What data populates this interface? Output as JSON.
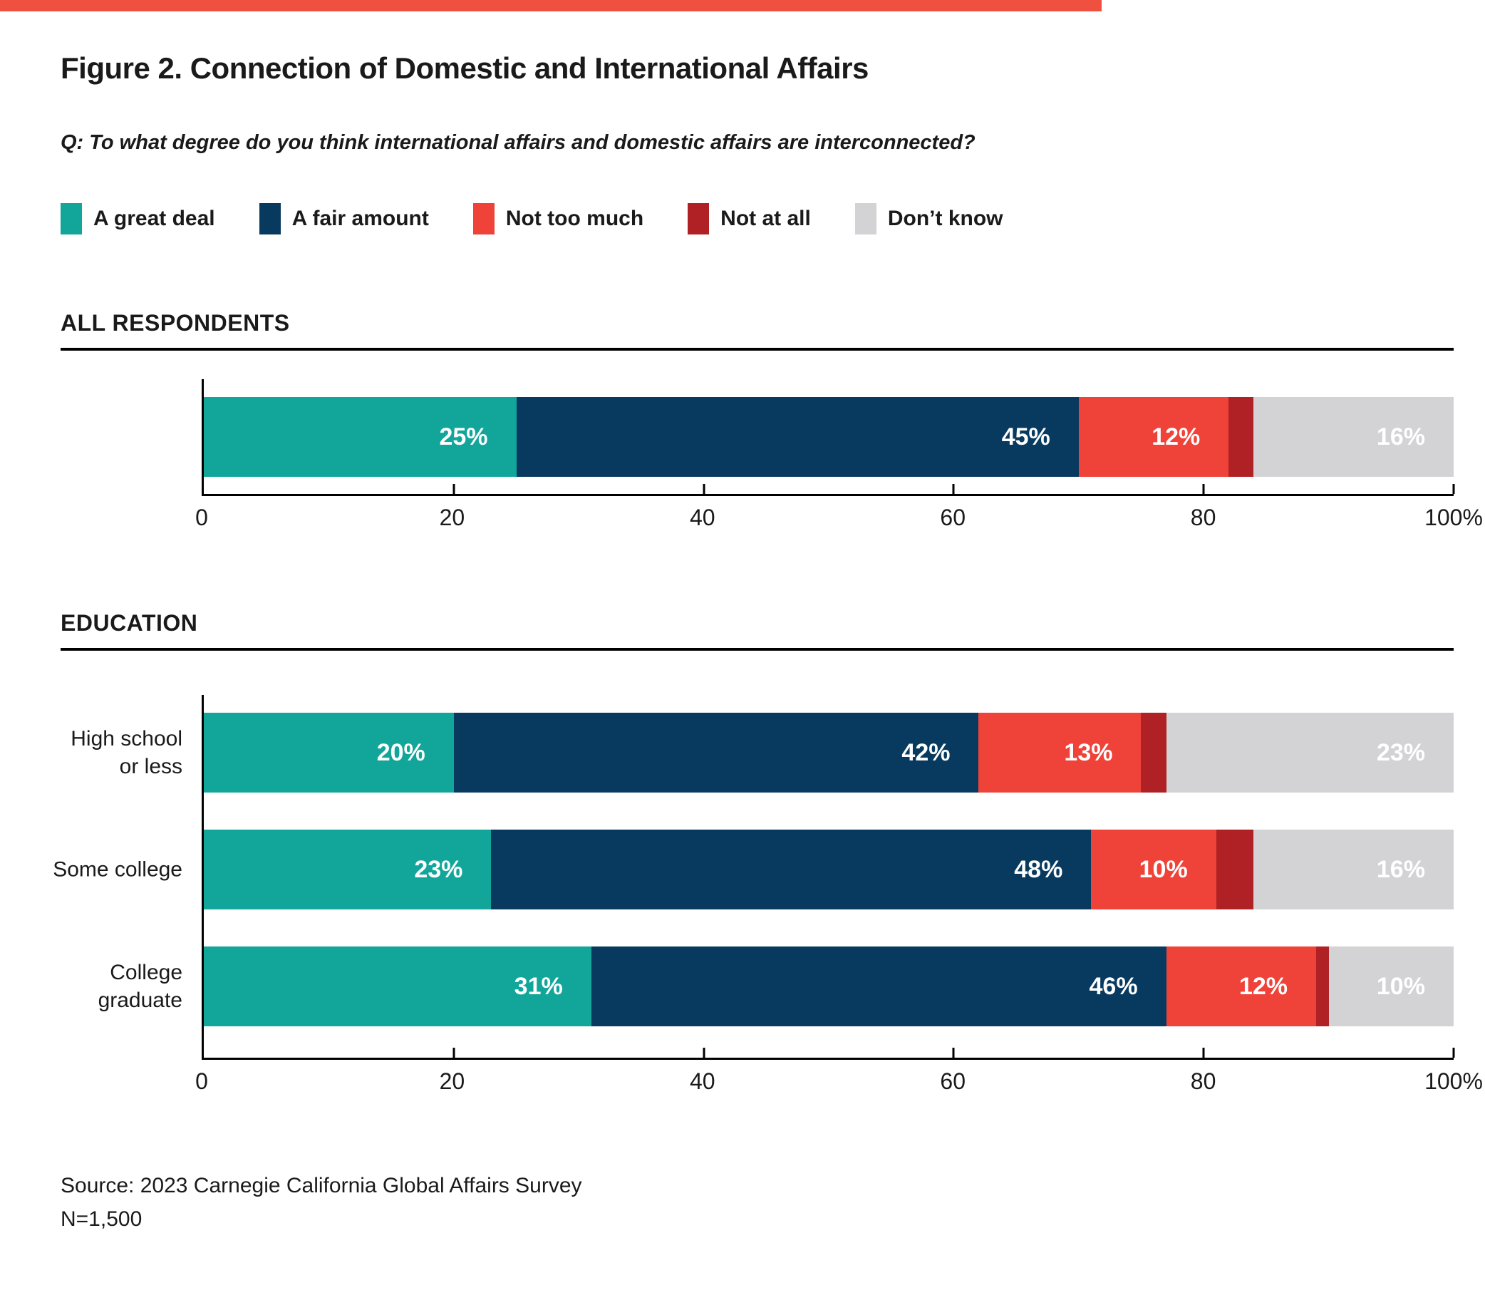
{
  "page": {
    "title": "Figure 2. Connection of Domestic and International Affairs",
    "question": "Q: To what degree do you think international affairs and domestic affairs are interconnected?",
    "source_line1": "Source: 2023 Carnegie California Global Affairs Survey",
    "source_line2": "N=1,500",
    "accent_color": "#f0503f"
  },
  "legend": [
    {
      "label": "A great deal",
      "color": "#12a69b"
    },
    {
      "label": "A fair amount",
      "color": "#083a60"
    },
    {
      "label": "Not too much",
      "color": "#ef4238"
    },
    {
      "label": "Not at all",
      "color": "#b02126"
    },
    {
      "label": "Don’t know",
      "color": "#d3d3d5"
    }
  ],
  "chart_data": {
    "type": "bar",
    "orientation": "horizontal-stacked",
    "unit": "%",
    "xlim": [
      0,
      100
    ],
    "grid": false,
    "legend_position": "top",
    "categories_legend": [
      "A great deal",
      "A fair amount",
      "Not too much",
      "Not at all",
      "Don’t know"
    ],
    "colors": [
      "#12a69b",
      "#083a60",
      "#ef4238",
      "#b02126",
      "#d3d3d5"
    ],
    "x_ticks": [
      "0",
      "20",
      "40",
      "60",
      "80",
      "100%"
    ],
    "tick_positions": [
      0,
      20,
      40,
      60,
      80,
      100
    ],
    "sections": [
      {
        "heading": "ALL RESPONDENTS",
        "rows": [
          {
            "label_lines": [],
            "values": [
              25,
              45,
              12,
              2,
              16
            ],
            "value_labels": [
              "25%",
              "45%",
              "12%",
              "",
              "16%"
            ]
          }
        ]
      },
      {
        "heading": "EDUCATION",
        "rows": [
          {
            "label_lines": [
              "High school",
              "or less"
            ],
            "values": [
              20,
              42,
              13,
              2,
              23
            ],
            "value_labels": [
              "20%",
              "42%",
              "13%",
              "",
              "23%"
            ]
          },
          {
            "label_lines": [
              "Some college"
            ],
            "values": [
              23,
              48,
              10,
              3,
              16
            ],
            "value_labels": [
              "23%",
              "48%",
              "10%",
              "",
              "16%"
            ]
          },
          {
            "label_lines": [
              "College",
              "graduate"
            ],
            "values": [
              31,
              46,
              12,
              1,
              10
            ],
            "value_labels": [
              "31%",
              "46%",
              "12%",
              "",
              "10%"
            ]
          }
        ]
      }
    ]
  }
}
